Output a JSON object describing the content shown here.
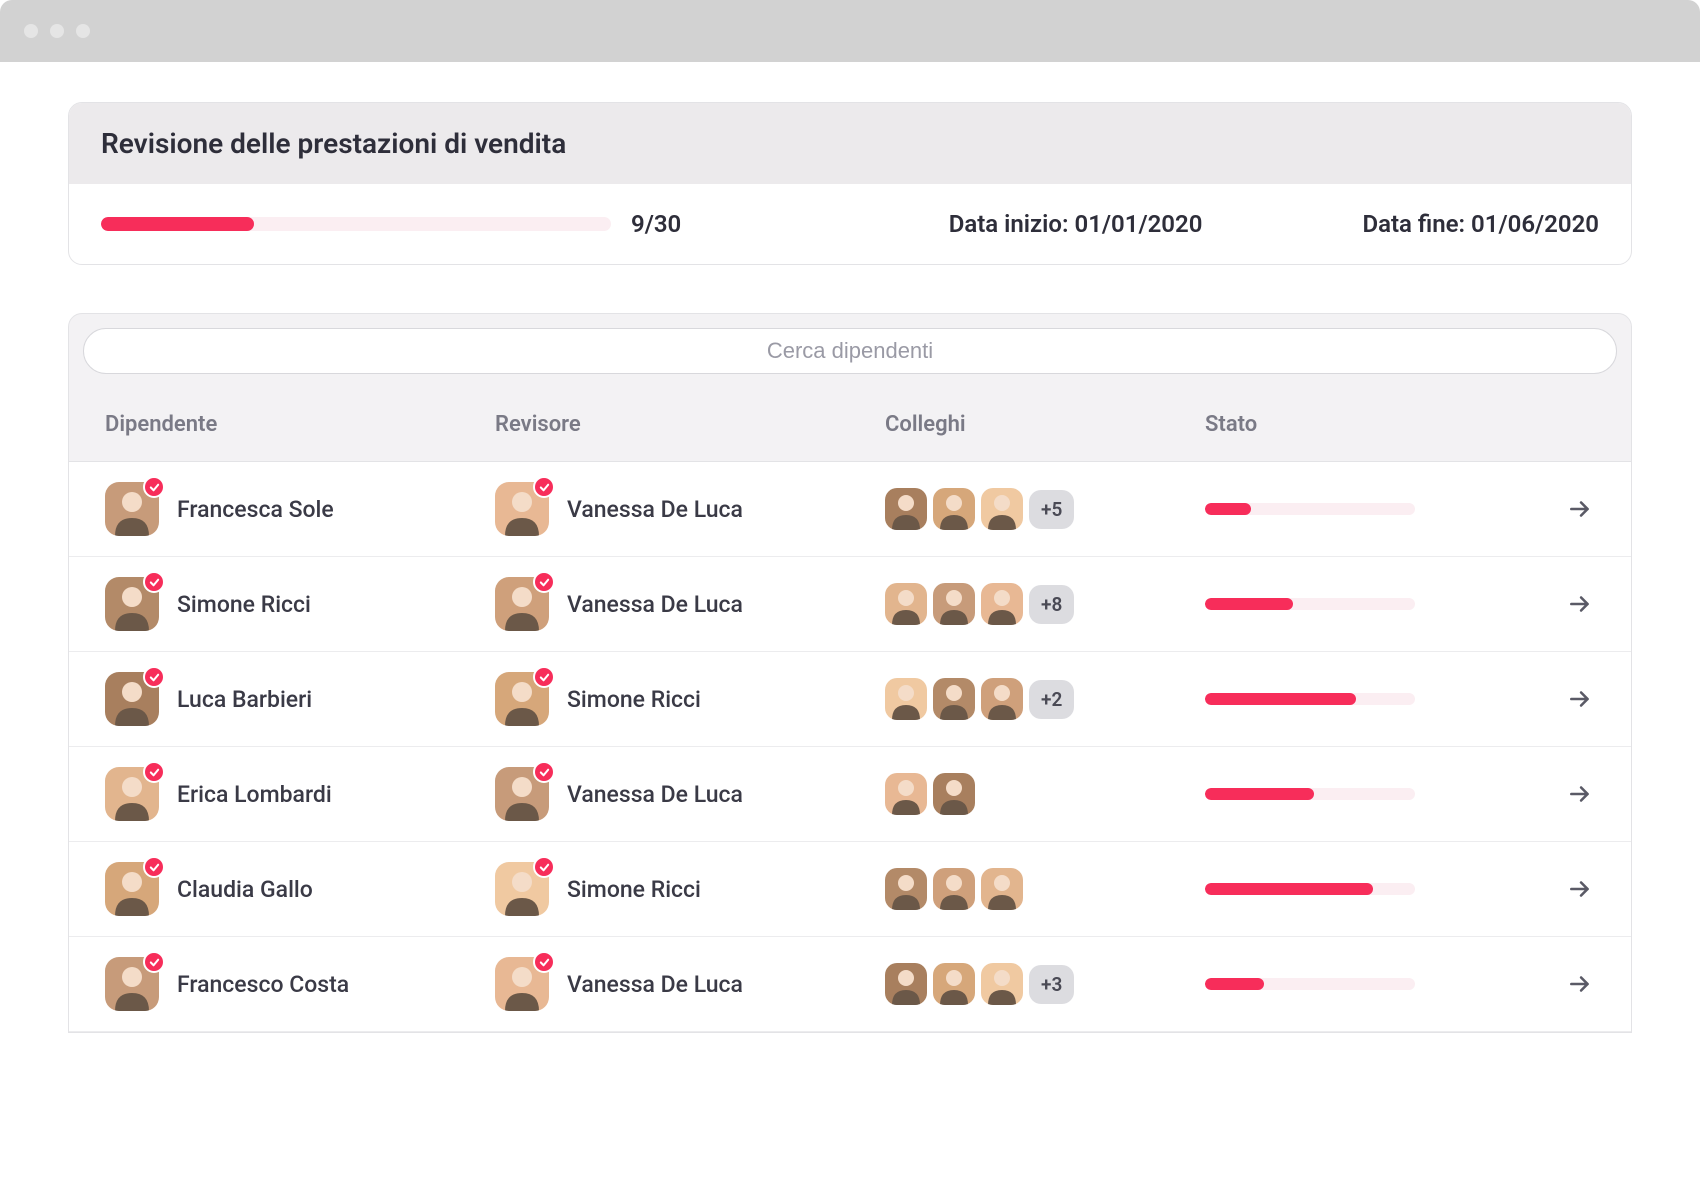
{
  "colors": {
    "accent": "#f72d5a",
    "progress_bg": "#fbeef2",
    "text_primary": "#2e2e3a",
    "text_secondary": "#7a7a86",
    "border": "#e3e3e6",
    "titlebar": "#d2d2d2",
    "header_bg": "#eceaec",
    "table_header_bg": "#f3f2f4",
    "chip_bg": "#dcdce0"
  },
  "header": {
    "title": "Revisione delle prestazioni di vendita",
    "progress_label": "9/30",
    "progress_percent": 30,
    "start_label": "Data inizio: 01/01/2020",
    "end_label": "Data fine: 01/06/2020"
  },
  "search": {
    "placeholder": "Cerca dipendenti"
  },
  "columns": {
    "employee": "Dipendente",
    "reviewer": "Revisore",
    "peers": "Colleghi",
    "status": "Stato"
  },
  "avatar_palette": [
    "#c79b7a",
    "#e8b894",
    "#a87f5e",
    "#d6a77a",
    "#f0c9a1",
    "#b38a68",
    "#cfa07b",
    "#e2b58e"
  ],
  "rows": [
    {
      "employee": "Francesca Sole",
      "reviewer": "Vanessa De Luca",
      "peers_count": 3,
      "more": "+5",
      "progress": 22
    },
    {
      "employee": "Simone Ricci",
      "reviewer": "Vanessa De Luca",
      "peers_count": 3,
      "more": "+8",
      "progress": 42
    },
    {
      "employee": "Luca Barbieri",
      "reviewer": "Simone Ricci",
      "peers_count": 3,
      "more": "+2",
      "progress": 72
    },
    {
      "employee": "Erica Lombardi",
      "reviewer": "Vanessa De Luca",
      "peers_count": 2,
      "more": null,
      "progress": 52
    },
    {
      "employee": "Claudia Gallo",
      "reviewer": "Simone Ricci",
      "peers_count": 3,
      "more": null,
      "progress": 80
    },
    {
      "employee": "Francesco Costa",
      "reviewer": "Vanessa De Luca",
      "peers_count": 3,
      "more": "+3",
      "progress": 28
    }
  ]
}
